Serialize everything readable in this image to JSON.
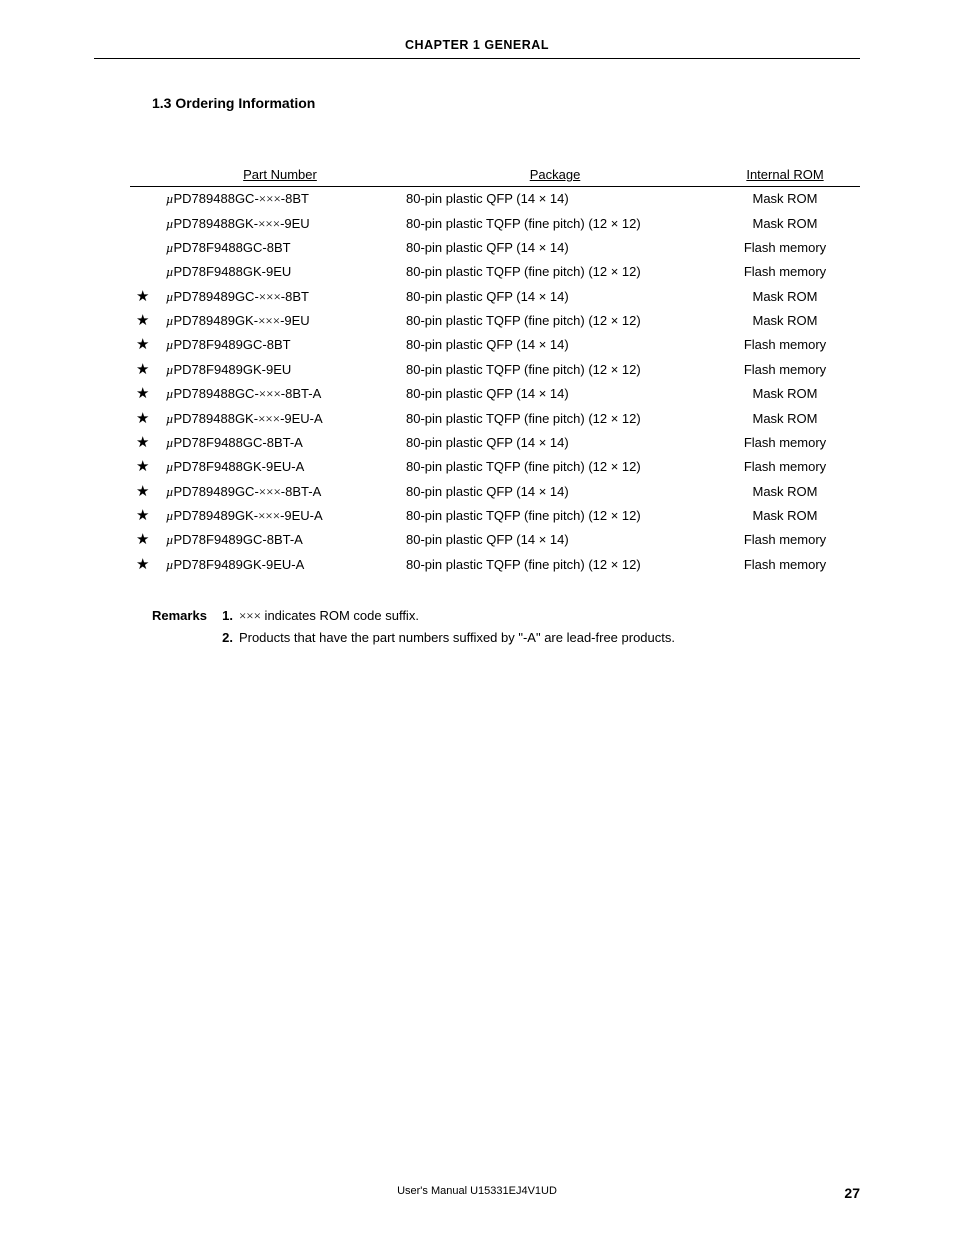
{
  "header": {
    "chapter": "CHAPTER  1   GENERAL"
  },
  "section": {
    "title": "1.3  Ordering Information"
  },
  "table": {
    "type": "table",
    "columns": [
      "Part Number",
      "Package",
      "Internal ROM"
    ],
    "background_color": "#ffffff",
    "text_color": "#000000",
    "border_color": "#000000",
    "fontsize": 13,
    "rows": [
      {
        "star": false,
        "mu": true,
        "part": "PD789488GC-",
        "xxx": true,
        "suffix": "-8BT",
        "package": "80-pin plastic QFP (14 × 14)",
        "rom": "Mask ROM"
      },
      {
        "star": false,
        "mu": true,
        "part": "PD789488GK-",
        "xxx": true,
        "suffix": "-9EU",
        "package": "80-pin plastic TQFP (fine pitch) (12 × 12)",
        "rom": "Mask ROM"
      },
      {
        "star": false,
        "mu": true,
        "part": "PD78F9488GC-8BT",
        "xxx": false,
        "suffix": "",
        "package": "80-pin plastic QFP (14 × 14)",
        "rom": "Flash memory"
      },
      {
        "star": false,
        "mu": true,
        "part": "PD78F9488GK-9EU",
        "xxx": false,
        "suffix": "",
        "package": "80-pin plastic TQFP (fine pitch) (12 × 12)",
        "rom": "Flash memory"
      },
      {
        "star": true,
        "mu": true,
        "part": "PD789489GC-",
        "xxx": true,
        "suffix": "-8BT",
        "package": "80-pin plastic QFP (14 × 14)",
        "rom": "Mask ROM"
      },
      {
        "star": true,
        "mu": true,
        "part": "PD789489GK-",
        "xxx": true,
        "suffix": "-9EU",
        "package": "80-pin plastic TQFP (fine pitch) (12 × 12)",
        "rom": "Mask ROM"
      },
      {
        "star": true,
        "mu": true,
        "part": "PD78F9489GC-8BT",
        "xxx": false,
        "suffix": "",
        "package": "80-pin plastic QFP (14 × 14)",
        "rom": "Flash memory"
      },
      {
        "star": true,
        "mu": true,
        "part": "PD78F9489GK-9EU",
        "xxx": false,
        "suffix": "",
        "package": "80-pin plastic TQFP (fine pitch) (12 × 12)",
        "rom": "Flash memory"
      },
      {
        "star": true,
        "mu": true,
        "part": "PD789488GC-",
        "xxx": true,
        "suffix": "-8BT-A",
        "package": "80-pin plastic QFP (14 × 14)",
        "rom": "Mask ROM"
      },
      {
        "star": true,
        "mu": true,
        "part": "PD789488GK-",
        "xxx": true,
        "suffix": "-9EU-A",
        "package": "80-pin plastic TQFP (fine pitch) (12 × 12)",
        "rom": "Mask ROM"
      },
      {
        "star": true,
        "mu": true,
        "part": "PD78F9488GC-8BT-A",
        "xxx": false,
        "suffix": "",
        "package": "80-pin plastic QFP (14 × 14)",
        "rom": "Flash memory"
      },
      {
        "star": true,
        "mu": true,
        "part": "PD78F9488GK-9EU-A",
        "xxx": false,
        "suffix": "",
        "package": "80-pin plastic TQFP (fine pitch) (12 × 12)",
        "rom": "Flash memory"
      },
      {
        "star": true,
        "mu": true,
        "part": "PD789489GC-",
        "xxx": true,
        "suffix": "-8BT-A",
        "package": "80-pin plastic QFP (14 × 14)",
        "rom": "Mask ROM"
      },
      {
        "star": true,
        "mu": true,
        "part": "PD789489GK-",
        "xxx": true,
        "suffix": "-9EU-A",
        "package": "80-pin plastic TQFP (fine pitch) (12 × 12)",
        "rom": "Mask ROM"
      },
      {
        "star": true,
        "mu": true,
        "part": "PD78F9489GC-8BT-A",
        "xxx": false,
        "suffix": "",
        "package": "80-pin plastic QFP (14 × 14)",
        "rom": "Flash memory"
      },
      {
        "star": true,
        "mu": true,
        "part": "PD78F9489GK-9EU-A",
        "xxx": false,
        "suffix": "",
        "package": "80-pin plastic TQFP (fine pitch) (12 × 12)",
        "rom": "Flash memory"
      }
    ]
  },
  "remarks": {
    "label": "Remarks",
    "items": [
      {
        "num": "1.",
        "text_pre": "",
        "xxx": true,
        "text_post": " indicates ROM code suffix."
      },
      {
        "num": "2.",
        "text_pre": "Products that have the part numbers suffixed by \"-A\" are lead-free products.",
        "xxx": false,
        "text_post": ""
      }
    ]
  },
  "footer": {
    "manual": "User's Manual  U15331EJ4V1UD",
    "page": "27"
  },
  "glyphs": {
    "star": "★",
    "mu": "µ",
    "xxx": "×××"
  }
}
